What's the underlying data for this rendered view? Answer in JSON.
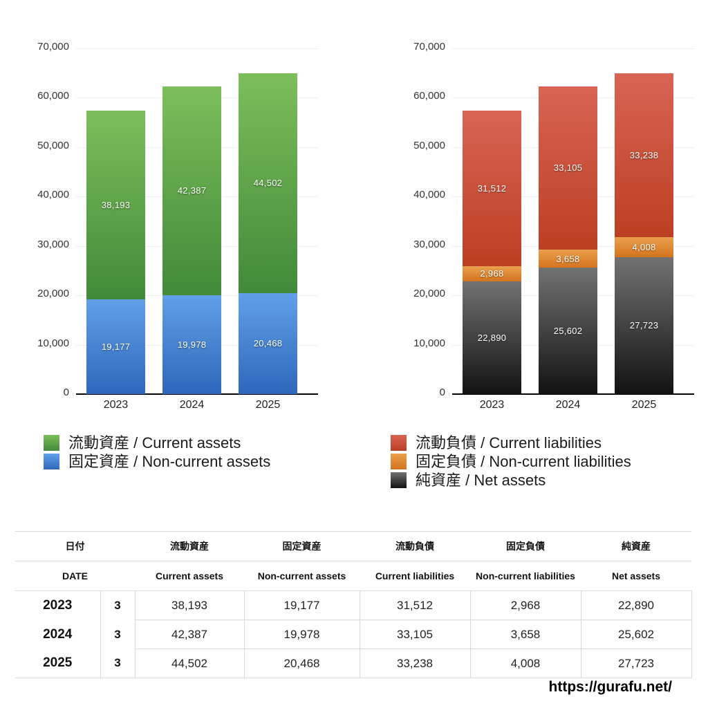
{
  "chart_data": [
    {
      "type": "bar",
      "stacked": true,
      "title": "",
      "categories": [
        "2023",
        "2024",
        "2025"
      ],
      "xlabel": "",
      "ylabel": "",
      "ylim": [
        0,
        70000
      ],
      "ytick_labels": [
        "70,000",
        "60,000",
        "50,000",
        "40,000",
        "30,000",
        "20,000",
        "10,000",
        "0"
      ],
      "grid": true,
      "legend_position": "bottom-left",
      "series": [
        {
          "name": "流動資産 / Current assets",
          "values": [
            38193,
            42387,
            44502
          ],
          "value_labels": [
            "38,193",
            "42,387",
            "44,502"
          ],
          "color_top": "#7dbe5b",
          "color_bottom": "#428a3a"
        },
        {
          "name": "固定資産 / Non-current assets",
          "values": [
            19177,
            19978,
            20468
          ],
          "value_labels": [
            "19,177",
            "19,978",
            "20,468"
          ],
          "color_top": "#61a0e8",
          "color_bottom": "#2f67bb"
        }
      ]
    },
    {
      "type": "bar",
      "stacked": true,
      "title": "",
      "categories": [
        "2023",
        "2024",
        "2025"
      ],
      "xlabel": "",
      "ylabel": "",
      "ylim": [
        0,
        70000
      ],
      "ytick_labels": [
        "70,000",
        "60,000",
        "50,000",
        "40,000",
        "30,000",
        "20,000",
        "10,000",
        "0"
      ],
      "grid": true,
      "legend_position": "bottom-left",
      "series": [
        {
          "name": "流動負債 / Current liabilities",
          "values": [
            31512,
            33105,
            33238
          ],
          "value_labels": [
            "31,512",
            "33,105",
            "33,238"
          ],
          "color_top": "#d96455",
          "color_bottom": "#bb3f22"
        },
        {
          "name": "固定負債 / Non-current liabilities",
          "values": [
            2968,
            3658,
            4008
          ],
          "value_labels": [
            "2,968",
            "3,658",
            "4,008"
          ],
          "color_top": "#e9a04c",
          "color_bottom": "#d4741f"
        },
        {
          "name": "純資産 / Net assets",
          "values": [
            22890,
            25602,
            27723
          ],
          "value_labels": [
            "22,890",
            "25,602",
            "27,723"
          ],
          "color_top": "#727272",
          "color_bottom": "#121212"
        }
      ]
    }
  ],
  "table": {
    "header_jp": [
      "日付",
      "流動資産",
      "固定資産",
      "流動負債",
      "固定負債",
      "純資産"
    ],
    "header_en": [
      "DATE",
      "Current assets",
      "Non-current assets",
      "Current liabilities",
      "Non-current liabilities",
      "Net assets"
    ],
    "rows": [
      {
        "year": "2023",
        "month": "3",
        "values": [
          "38,193",
          "19,177",
          "31,512",
          "2,968",
          "22,890"
        ]
      },
      {
        "year": "2024",
        "month": "3",
        "values": [
          "42,387",
          "19,978",
          "33,105",
          "3,658",
          "25,602"
        ]
      },
      {
        "year": "2025",
        "month": "3",
        "values": [
          "44,502",
          "20,468",
          "33,238",
          "4,008",
          "27,723"
        ]
      }
    ]
  },
  "footer": {
    "site_url": "https://gurafu.net/"
  }
}
